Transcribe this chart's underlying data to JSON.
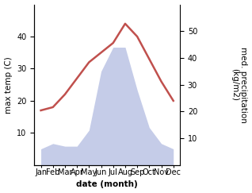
{
  "months": [
    "Jan",
    "Feb",
    "Mar",
    "Apr",
    "May",
    "Jun",
    "Jul",
    "Aug",
    "Sep",
    "Oct",
    "Nov",
    "Dec"
  ],
  "temperature": [
    17,
    18,
    22,
    27,
    32,
    35,
    38,
    44,
    40,
    33,
    26,
    20
  ],
  "precipitation": [
    6,
    8,
    7,
    7,
    13,
    35,
    44,
    44,
    28,
    14,
    8,
    6
  ],
  "temp_color": "#c0504d",
  "precip_fill_color": "#c5cce8",
  "ylabel_left": "max temp (C)",
  "ylabel_right": "med. precipitation\n(kg/m2)",
  "xlabel": "date (month)",
  "ylim_left": [
    0,
    50
  ],
  "ylim_right": [
    0,
    60
  ],
  "yticks_left": [
    10,
    20,
    30,
    40
  ],
  "yticks_right": [
    10,
    20,
    30,
    40,
    50
  ],
  "bg_color": "#ffffff",
  "line_width": 1.8,
  "label_fontsize": 7.5,
  "tick_fontsize": 7
}
